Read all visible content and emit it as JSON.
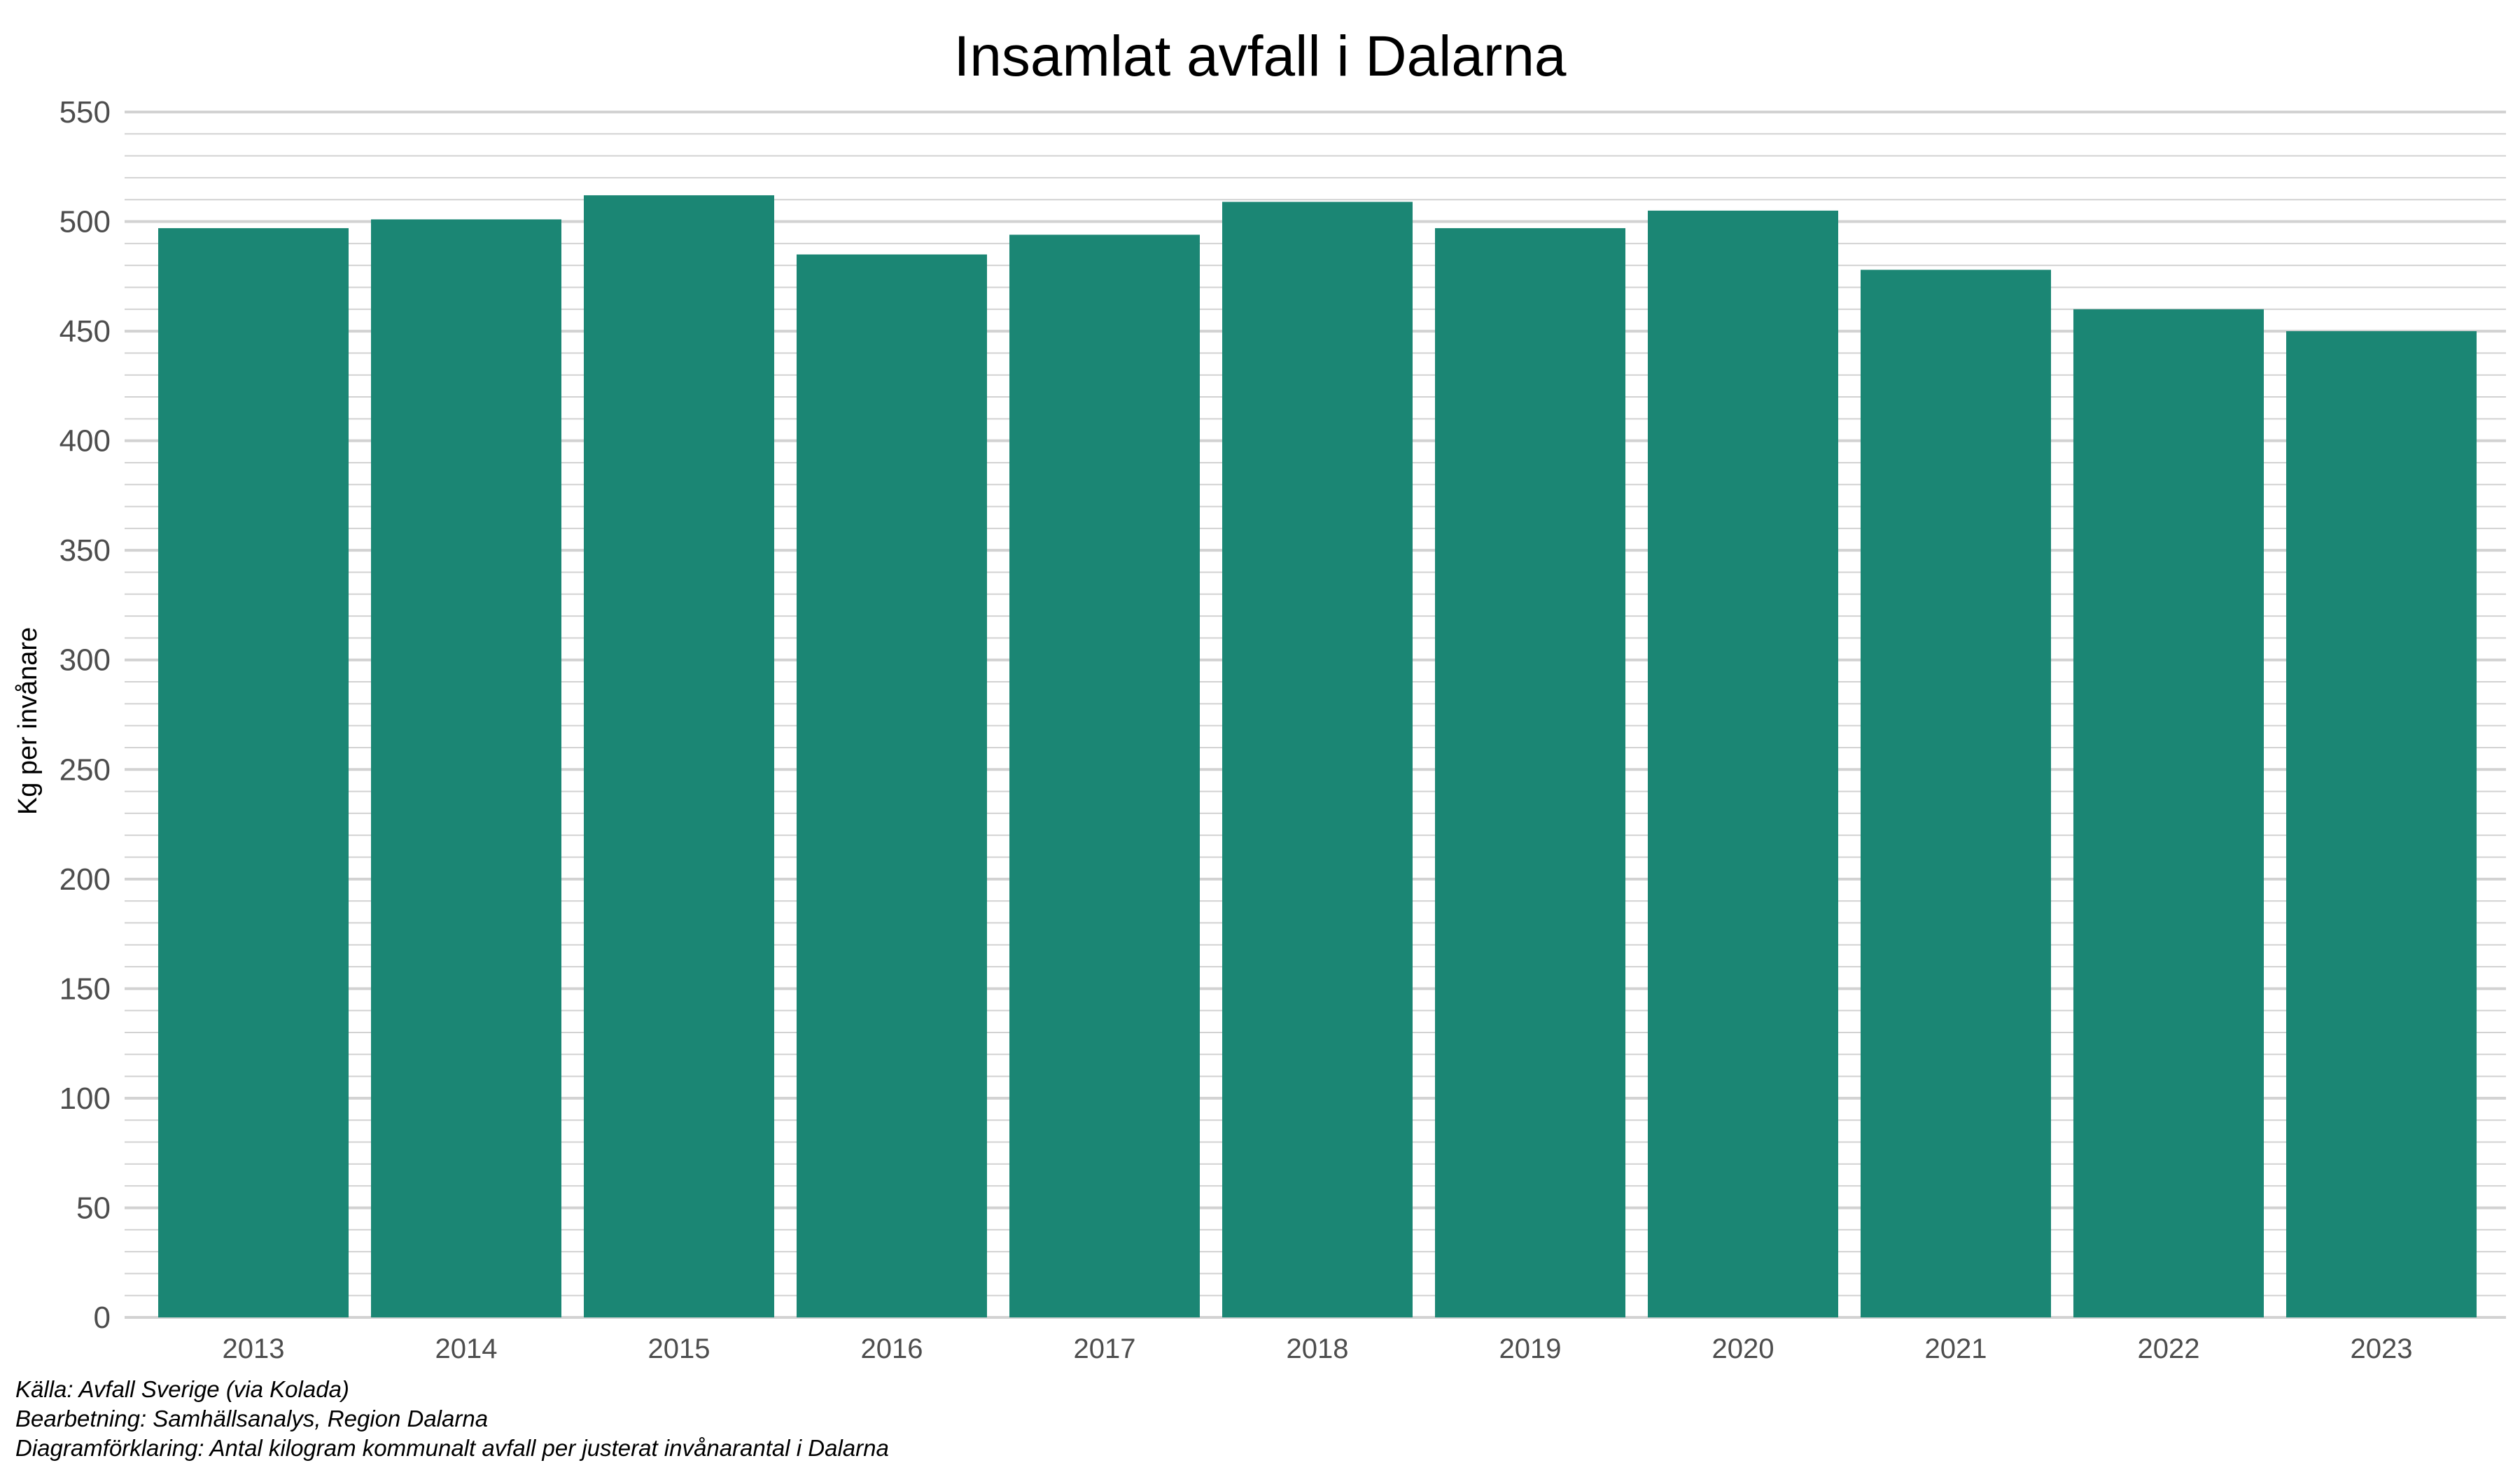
{
  "chart_data": {
    "type": "bar",
    "title": "Insamlat avfall i Dalarna",
    "xlabel": "",
    "ylabel": "Kg per invånare",
    "categories": [
      "2013",
      "2014",
      "2015",
      "2016",
      "2017",
      "2018",
      "2019",
      "2020",
      "2021",
      "2022",
      "2023"
    ],
    "values": [
      497,
      501,
      512,
      485,
      494,
      509,
      497,
      505,
      478,
      460,
      450
    ],
    "ylim": [
      0,
      550
    ],
    "yticks": [
      0,
      50,
      100,
      150,
      200,
      250,
      300,
      350,
      400,
      450,
      500,
      550
    ],
    "grid": true,
    "bar_color": "#1b8674",
    "gridline_color": "#d2d2d2"
  },
  "captions": {
    "source": "Källa: Avfall Sverige (via Kolada)",
    "processing": "Bearbetning: Samhällsanalys, Region Dalarna",
    "explanation": "Diagramförklaring: Antal kilogram kommunalt avfall per justerat invånarantal i Dalarna"
  }
}
